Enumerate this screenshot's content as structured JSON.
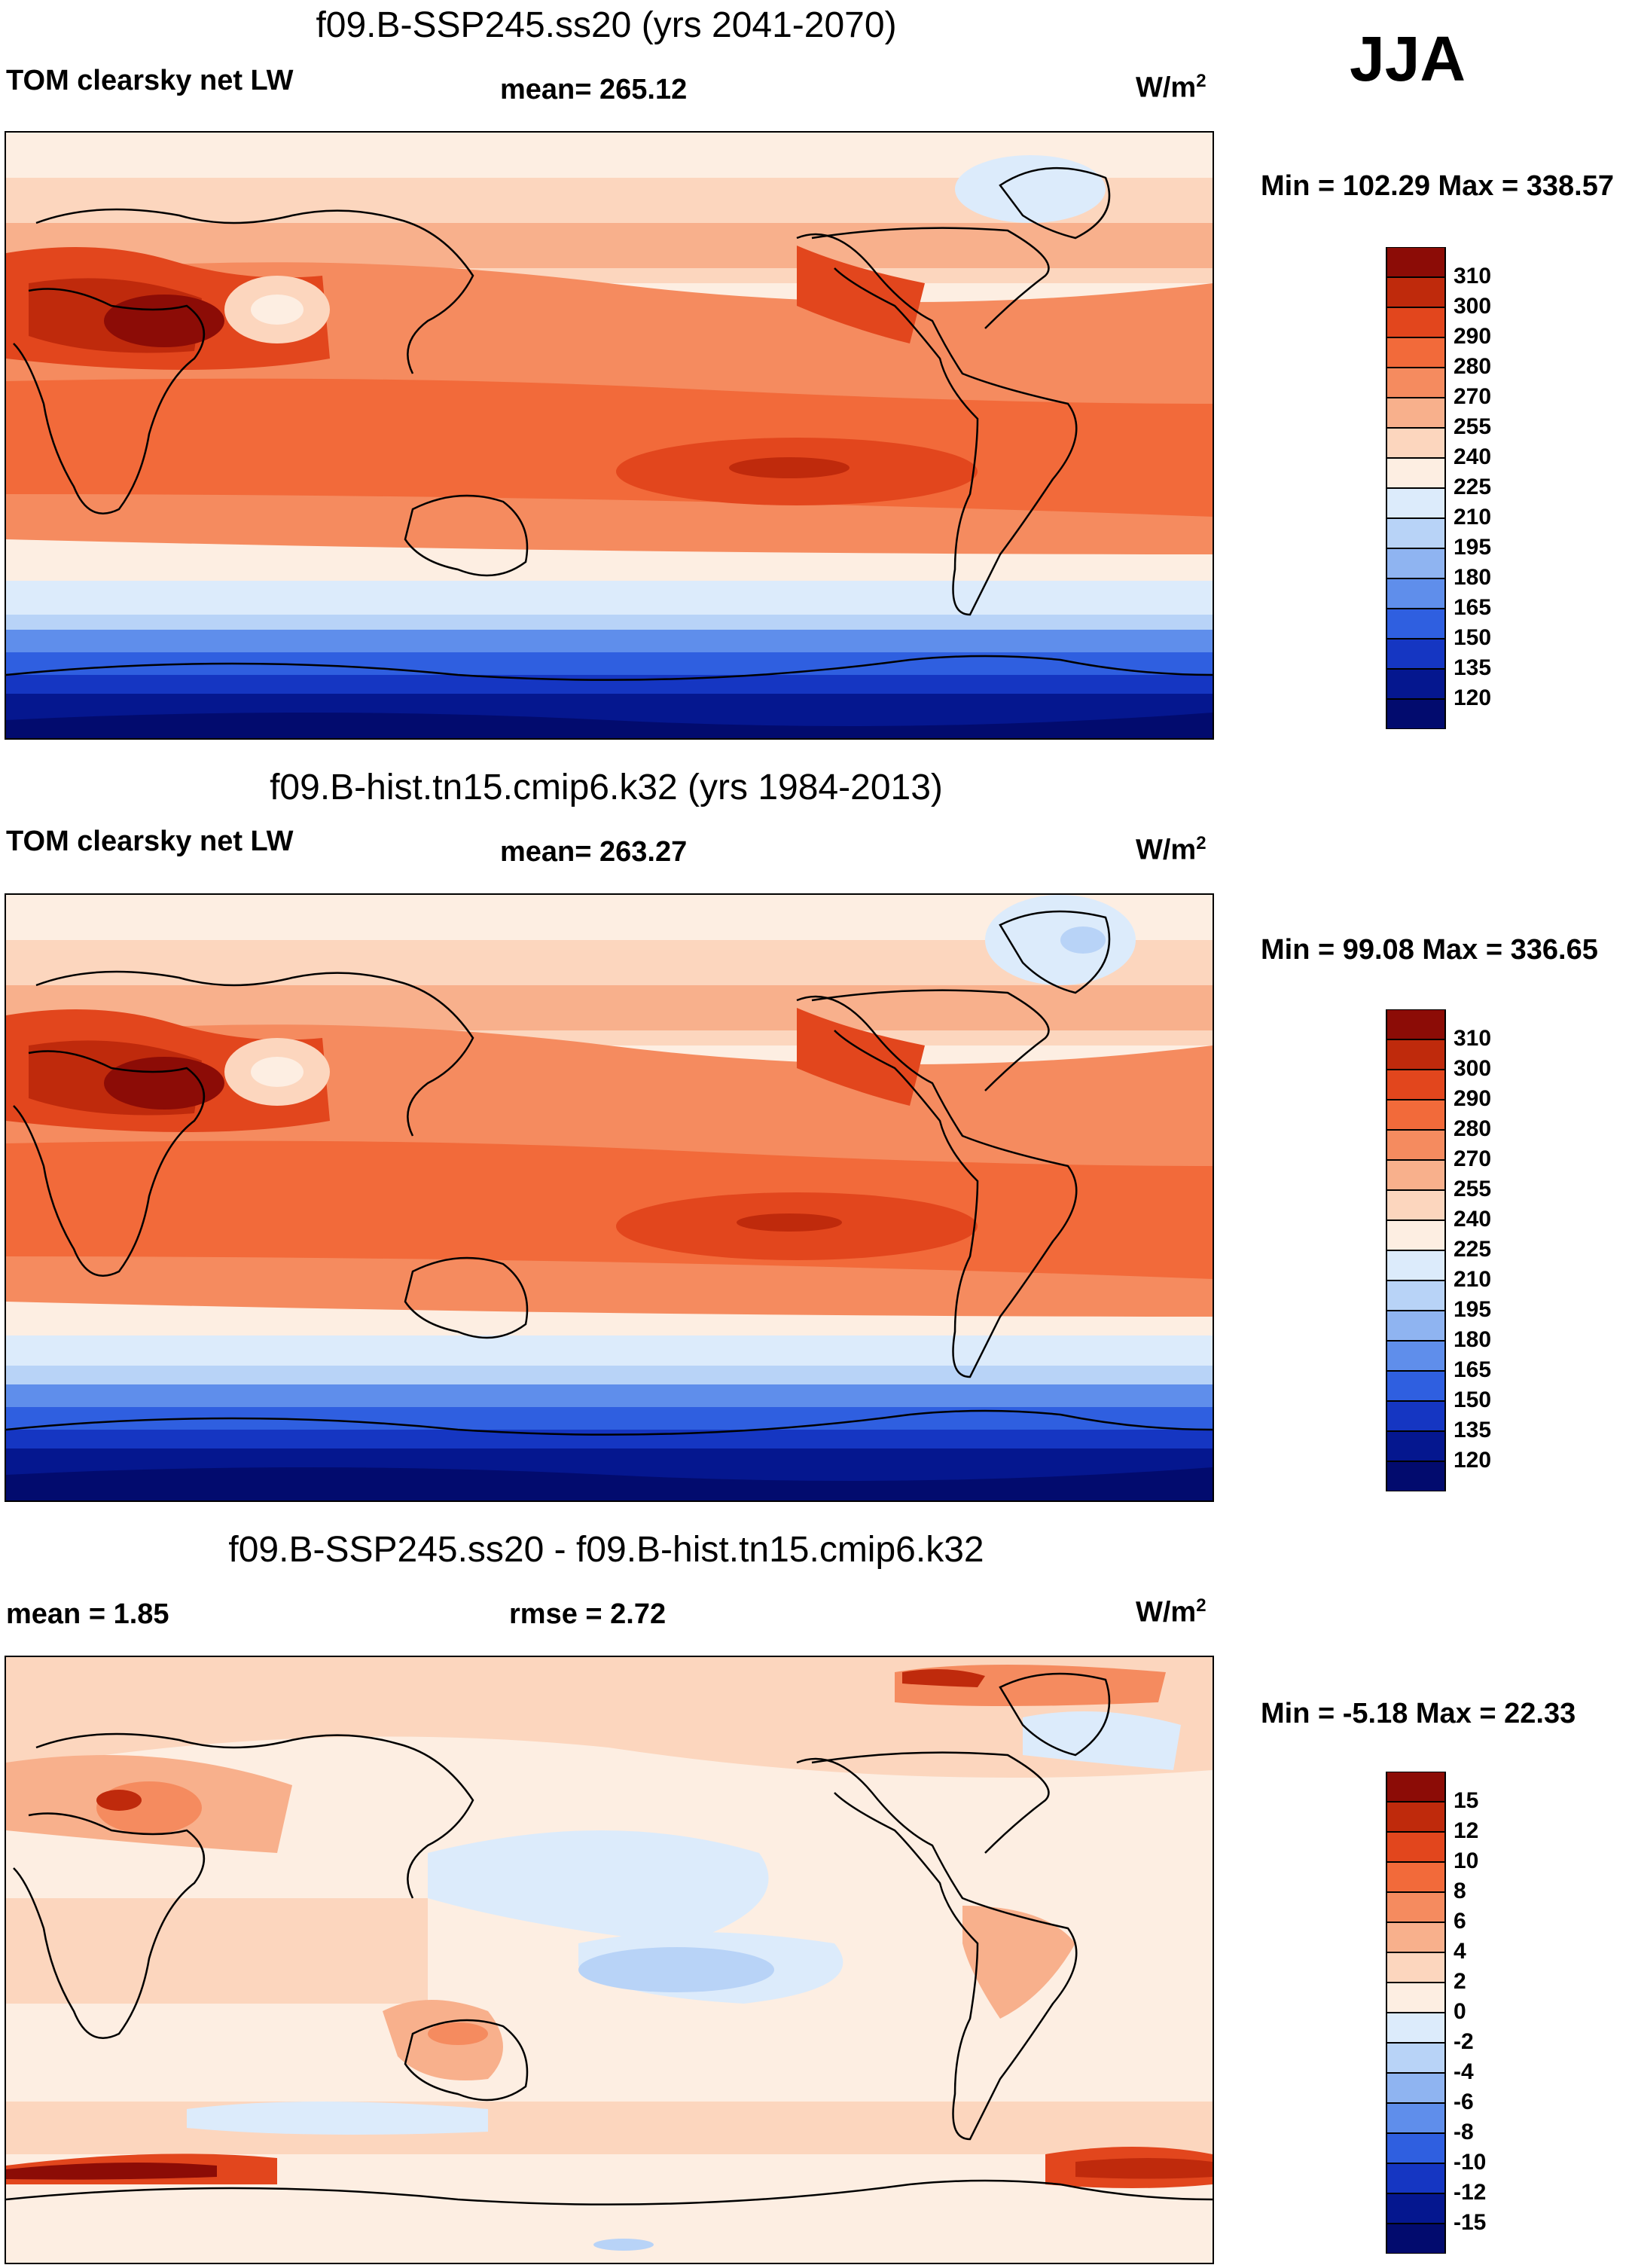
{
  "season": "JJA",
  "panels": [
    {
      "title": "f09.B-SSP245.ss20 (yrs 2041-2070)",
      "left_label": "TOM clearsky net LW",
      "center_label": "mean= 265.12",
      "units_base": "W/m",
      "units_exp": "2",
      "minmax": "Min = 102.29 Max = 338.57",
      "colorbar": {
        "labels": [
          "310",
          "300",
          "290",
          "280",
          "270",
          "255",
          "240",
          "225",
          "210",
          "195",
          "180",
          "165",
          "150",
          "135",
          "120"
        ],
        "colors": [
          "#8c0c06",
          "#bf2a0c",
          "#e2461d",
          "#f26a3a",
          "#f58b5f",
          "#f8b08c",
          "#fcd6be",
          "#fdeee2",
          "#dcebfb",
          "#b8d3f7",
          "#8fb4f1",
          "#5f8eeb",
          "#2f5fe0",
          "#1536c2",
          "#05178f",
          "#020b6e"
        ]
      }
    },
    {
      "title": "f09.B-hist.tn15.cmip6.k32 (yrs 1984-2013)",
      "left_label": "TOM clearsky net LW",
      "center_label": "mean= 263.27",
      "units_base": "W/m",
      "units_exp": "2",
      "minmax": "Min =  99.08 Max = 336.65",
      "colorbar": {
        "labels": [
          "310",
          "300",
          "290",
          "280",
          "270",
          "255",
          "240",
          "225",
          "210",
          "195",
          "180",
          "165",
          "150",
          "135",
          "120"
        ],
        "colors": [
          "#8c0c06",
          "#bf2a0c",
          "#e2461d",
          "#f26a3a",
          "#f58b5f",
          "#f8b08c",
          "#fcd6be",
          "#fdeee2",
          "#dcebfb",
          "#b8d3f7",
          "#8fb4f1",
          "#5f8eeb",
          "#2f5fe0",
          "#1536c2",
          "#05178f",
          "#020b6e"
        ]
      }
    },
    {
      "title": "f09.B-SSP245.ss20 - f09.B-hist.tn15.cmip6.k32",
      "left_label": "mean =   1.85",
      "center_label": "rmse =   2.72",
      "units_base": "W/m",
      "units_exp": "2",
      "minmax": "Min =  -5.18 Max =  22.33",
      "colorbar": {
        "labels": [
          "15",
          "12",
          "10",
          "8",
          "6",
          "4",
          "2",
          "0",
          "-2",
          "-4",
          "-6",
          "-8",
          "-10",
          "-12",
          "-15"
        ],
        "colors": [
          "#8c0c06",
          "#bf2a0c",
          "#e2461d",
          "#f26a3a",
          "#f58b5f",
          "#f8b08c",
          "#fcd6be",
          "#fdeee2",
          "#dcebfb",
          "#b8d3f7",
          "#8fb4f1",
          "#5f8eeb",
          "#2f5fe0",
          "#1536c2",
          "#05178f",
          "#020b6e"
        ]
      }
    }
  ]
}
